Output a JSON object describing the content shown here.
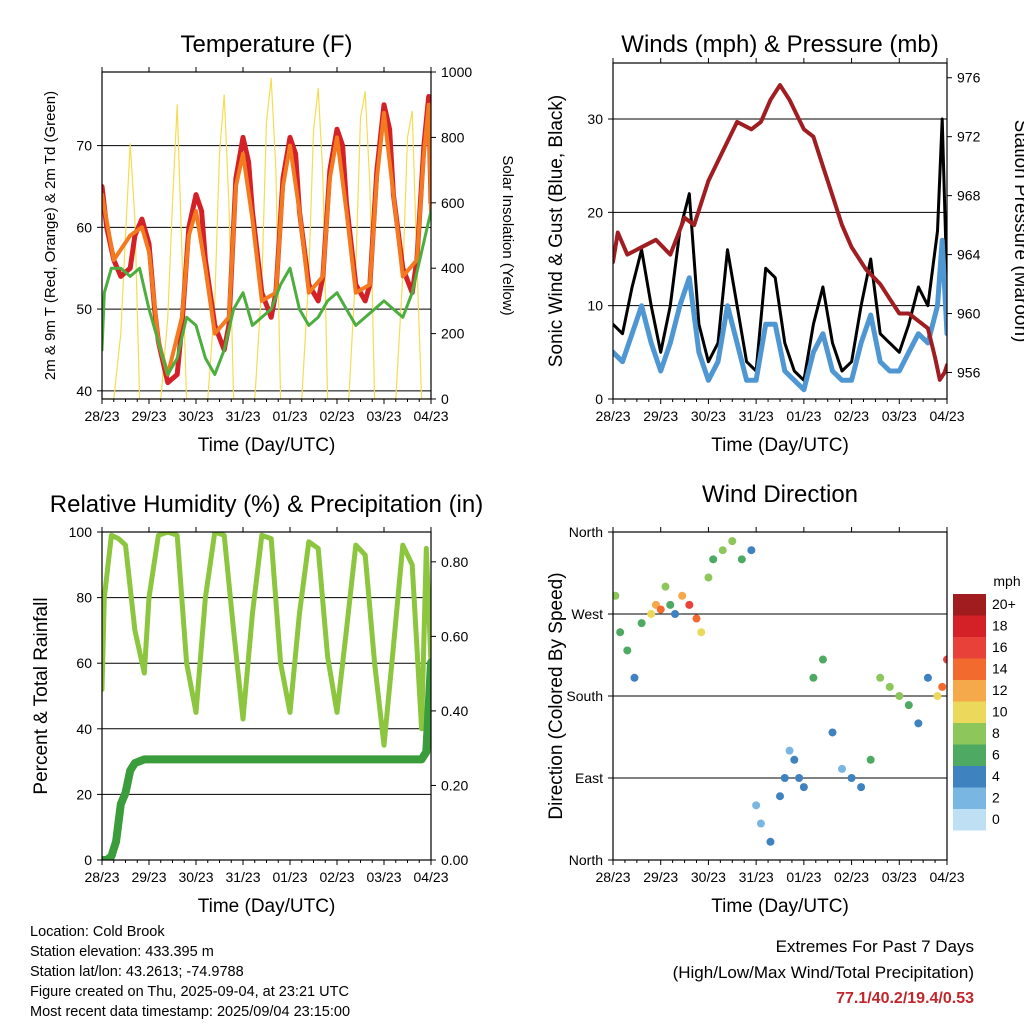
{
  "x_ticks": [
    "28/23",
    "29/23",
    "30/23",
    "31/23",
    "01/23",
    "02/23",
    "03/23",
    "04/23"
  ],
  "x_axis_label": "Time (Day/UTC)",
  "info": {
    "location": "Location: Cold Brook",
    "elevation": "Station elevation: 433.395 m",
    "latlon": "Station lat/lon: 43.2613; -74.9788",
    "created": "Figure created on Thu, 2025-09-04, at 23:21 UTC",
    "recent": "Most recent data timestamp: 2025/09/04 23:15:00"
  },
  "extremes": {
    "title": "Extremes For Past 7 Days",
    "subtitle": "(High/Low/Max Wind/Total Precipitation)",
    "values": "77.1/40.2/19.4/0.53"
  },
  "chart_data": [
    {
      "type": "line",
      "title": "Temperature (F)",
      "xlabel": "Time (Day/UTC)",
      "ylabel": "2m & 9m T (Red, Orange) & 2m Td (Green)",
      "y2label": "Solar Insolation (Yellow)",
      "ylim": [
        39,
        79
      ],
      "y_ticks": [
        40,
        50,
        60,
        70
      ],
      "y2lim": [
        0,
        1000
      ],
      "y2_ticks": [
        0,
        200,
        400,
        600,
        800,
        1000
      ],
      "grid": true,
      "series": [
        {
          "color": "#d42127",
          "x": [
            0,
            0.1,
            0.25,
            0.4,
            0.6,
            0.7,
            0.85,
            1.0,
            1.12,
            1.2,
            1.4,
            1.6,
            1.7,
            1.85,
            2.0,
            2.12,
            2.2,
            2.4,
            2.6,
            2.7,
            2.85,
            3.0,
            3.12,
            3.2,
            3.4,
            3.6,
            3.7,
            3.85,
            4.0,
            4.12,
            4.2,
            4.4,
            4.6,
            4.7,
            4.85,
            5.0,
            5.12,
            5.2,
            5.4,
            5.6,
            5.7,
            5.85,
            6.0,
            6.12,
            6.2,
            6.4,
            6.6,
            6.7,
            6.85,
            6.95,
            7.0
          ],
          "y": [
            65,
            60,
            56,
            54,
            55,
            59,
            61,
            58,
            50,
            46,
            41,
            42,
            48,
            60,
            64,
            62,
            56,
            48,
            45,
            48,
            66,
            71,
            68,
            62,
            52,
            49,
            52,
            66,
            71,
            69,
            62,
            53,
            51,
            54,
            67,
            72,
            70,
            63,
            53,
            51,
            53,
            67,
            75,
            72,
            64,
            55,
            52,
            56,
            70,
            76,
            63
          ]
        },
        {
          "color": "#f47a20",
          "x": [
            0,
            0.25,
            0.6,
            0.85,
            1.0,
            1.2,
            1.4,
            1.7,
            1.85,
            2.0,
            2.2,
            2.4,
            2.7,
            2.85,
            3.0,
            3.2,
            3.4,
            3.7,
            3.85,
            4.0,
            4.2,
            4.4,
            4.7,
            4.85,
            5.0,
            5.2,
            5.4,
            5.7,
            5.85,
            6.0,
            6.2,
            6.4,
            6.7,
            6.85,
            6.95,
            7.0
          ],
          "y": [
            64,
            56,
            59,
            60,
            57,
            46,
            42,
            49,
            59,
            62,
            55,
            47,
            49,
            65,
            69,
            61,
            51,
            52,
            65,
            70,
            62,
            52,
            54,
            66,
            71,
            62,
            52,
            53,
            66,
            74,
            64,
            54,
            56,
            69,
            75,
            62
          ]
        },
        {
          "color": "#4cae3e",
          "x": [
            0,
            0.05,
            0.2,
            0.4,
            0.6,
            0.8,
            1.0,
            1.2,
            1.4,
            1.6,
            1.8,
            2.0,
            2.2,
            2.4,
            2.6,
            2.8,
            3.0,
            3.2,
            3.4,
            3.6,
            3.8,
            4.0,
            4.2,
            4.4,
            4.6,
            4.8,
            5.0,
            5.2,
            5.4,
            5.6,
            5.8,
            6.0,
            6.2,
            6.4,
            6.6,
            6.8,
            7.0
          ],
          "y": [
            45,
            52,
            55,
            55,
            54,
            55,
            50,
            46,
            42,
            44,
            49,
            48,
            44,
            42,
            45,
            50,
            52,
            48,
            49,
            50,
            53,
            55,
            50,
            48,
            49,
            51,
            52,
            50,
            48,
            49,
            50,
            51,
            50,
            49,
            52,
            57,
            62
          ]
        },
        {
          "color": "#f5dc50",
          "axis": "y2",
          "x": [
            0,
            0.25,
            0.4,
            0.5,
            0.6,
            0.7,
            0.8,
            1.25,
            1.4,
            1.5,
            1.6,
            1.7,
            1.8,
            2.25,
            2.4,
            2.5,
            2.6,
            2.7,
            2.8,
            3.25,
            3.4,
            3.5,
            3.6,
            3.7,
            3.8,
            4.25,
            4.4,
            4.5,
            4.6,
            4.7,
            4.8,
            5.25,
            5.4,
            5.5,
            5.6,
            5.7,
            5.8,
            6.25,
            6.4,
            6.5,
            6.6,
            6.7,
            6.8,
            7.0
          ],
          "y": [
            0,
            0,
            200,
            500,
            780,
            550,
            0,
            0,
            250,
            600,
            900,
            450,
            0,
            0,
            300,
            750,
            930,
            600,
            0,
            0,
            350,
            850,
            980,
            700,
            0,
            0,
            380,
            820,
            950,
            680,
            0,
            0,
            400,
            860,
            940,
            650,
            0,
            0,
            380,
            800,
            880,
            420,
            0,
            0
          ]
        }
      ]
    },
    {
      "type": "line",
      "title": "Winds (mph) & Pressure (mb)",
      "xlabel": "Time (Day/UTC)",
      "ylabel": "Sonic Wind & Gust (Blue, Black)",
      "y2label": "Station Pressure (Maroon)",
      "ylim": [
        0,
        36
      ],
      "y_ticks": [
        0,
        10,
        20,
        30
      ],
      "y2lim": [
        954.2,
        977
      ],
      "y2_ticks": [
        956,
        960,
        964,
        968,
        972,
        976
      ],
      "grid": true,
      "series": [
        {
          "color": "#000000",
          "x": [
            0,
            0.2,
            0.4,
            0.6,
            0.8,
            1.0,
            1.2,
            1.4,
            1.6,
            1.8,
            2.0,
            2.2,
            2.4,
            2.6,
            2.8,
            3.0,
            3.2,
            3.4,
            3.6,
            3.8,
            4.0,
            4.2,
            4.4,
            4.6,
            4.8,
            5.0,
            5.2,
            5.4,
            5.6,
            5.8,
            6.0,
            6.2,
            6.4,
            6.6,
            6.8,
            6.9,
            7.0
          ],
          "y": [
            8,
            7,
            12,
            16,
            10,
            5,
            10,
            18,
            22,
            8,
            4,
            6,
            16,
            10,
            4,
            3,
            14,
            13,
            6,
            3,
            2,
            8,
            12,
            6,
            3,
            4,
            10,
            15,
            7,
            6,
            5,
            8,
            12,
            10,
            18,
            30,
            12
          ]
        },
        {
          "color": "#4f97d3",
          "x": [
            0,
            0.2,
            0.4,
            0.6,
            0.8,
            1.0,
            1.2,
            1.4,
            1.6,
            1.8,
            2.0,
            2.2,
            2.4,
            2.6,
            2.8,
            3.0,
            3.2,
            3.4,
            3.6,
            3.8,
            4.0,
            4.2,
            4.4,
            4.6,
            4.8,
            5.0,
            5.2,
            5.4,
            5.6,
            5.8,
            6.0,
            6.2,
            6.4,
            6.6,
            6.8,
            6.9,
            7.0
          ],
          "y": [
            5,
            4,
            7,
            10,
            6,
            3,
            6,
            10,
            13,
            5,
            2,
            4,
            10,
            6,
            2,
            2,
            8,
            8,
            3,
            2,
            1,
            5,
            7,
            3,
            2,
            2,
            6,
            9,
            4,
            3,
            3,
            5,
            7,
            6,
            10,
            17,
            7
          ]
        },
        {
          "color": "#a01e22",
          "axis": "y2",
          "x": [
            0,
            0.1,
            0.3,
            0.6,
            0.9,
            1.2,
            1.5,
            1.7,
            2.0,
            2.3,
            2.6,
            2.9,
            3.1,
            3.3,
            3.5,
            3.7,
            3.85,
            4.0,
            4.2,
            4.4,
            4.6,
            4.8,
            5.0,
            5.3,
            5.6,
            5.8,
            6.0,
            6.2,
            6.4,
            6.6,
            6.75,
            6.85,
            6.95,
            7.0
          ],
          "y": [
            963.5,
            965.5,
            964,
            964.5,
            965,
            964,
            966.5,
            966,
            969,
            971,
            973,
            972.5,
            973,
            974.5,
            975.5,
            974.5,
            973.5,
            972.5,
            972,
            970,
            968,
            966,
            964.5,
            963,
            962,
            961,
            960,
            960,
            959.5,
            959,
            957,
            955.5,
            956,
            956.5
          ]
        }
      ]
    },
    {
      "type": "line",
      "title": "Relative Humidity (%) & Precipitation (in)",
      "xlabel": "Time (Day/UTC)",
      "ylabel": "Percent & Total Rainfall",
      "ylim": [
        0,
        100
      ],
      "y_ticks": [
        0,
        20,
        40,
        60,
        80,
        100
      ],
      "y2lim": [
        0,
        0.88
      ],
      "y2_ticks": [
        "0.00",
        "0.20",
        "0.40",
        "0.60",
        "0.80"
      ],
      "grid": true,
      "series": [
        {
          "color": "#8cc63f",
          "x": [
            0,
            0.05,
            0.2,
            0.35,
            0.5,
            0.7,
            0.9,
            1.0,
            1.2,
            1.4,
            1.6,
            1.8,
            2.0,
            2.2,
            2.4,
            2.6,
            2.8,
            3.0,
            3.2,
            3.4,
            3.6,
            3.8,
            4.0,
            4.2,
            4.4,
            4.6,
            4.8,
            5.0,
            5.2,
            5.4,
            5.6,
            5.8,
            6.0,
            6.2,
            6.4,
            6.6,
            6.8,
            6.9,
            7.0
          ],
          "y": [
            52,
            80,
            99,
            98,
            96,
            70,
            57,
            80,
            99,
            100,
            99,
            60,
            45,
            80,
            100,
            99,
            70,
            43,
            75,
            99,
            98,
            60,
            45,
            75,
            97,
            95,
            62,
            45,
            70,
            96,
            93,
            60,
            35,
            65,
            96,
            90,
            40,
            95,
            60
          ]
        },
        {
          "color": "#3a9c3a",
          "axis": "y2",
          "x": [
            0,
            0.1,
            0.2,
            0.3,
            0.4,
            0.5,
            0.6,
            0.7,
            0.9,
            1.2,
            2.0,
            3.0,
            4.0,
            5.0,
            6.0,
            6.8,
            6.9,
            7.0
          ],
          "y": [
            0,
            0,
            0.01,
            0.05,
            0.15,
            0.18,
            0.24,
            0.26,
            0.27,
            0.27,
            0.27,
            0.27,
            0.27,
            0.27,
            0.27,
            0.27,
            0.29,
            0.53
          ]
        }
      ]
    },
    {
      "type": "scatter",
      "title": "Wind Direction",
      "xlabel": "Time (Day/UTC)",
      "ylabel": "Direction (Colored By Speed)",
      "y_ticks": [
        "North",
        "East",
        "South",
        "West",
        "North"
      ],
      "ylim": [
        0,
        360
      ],
      "legend": {
        "title": "mph",
        "placement": "right",
        "labels": [
          "20+",
          "18",
          "16",
          "14",
          "12",
          "10",
          "8",
          "6",
          "4",
          "2",
          "0"
        ],
        "colors": [
          "#a01c1f",
          "#d42127",
          "#e8413a",
          "#f26a2e",
          "#f5a94a",
          "#ead95a",
          "#8dc65a",
          "#4eaa63",
          "#3e82c0",
          "#7ab6e2",
          "#bfe0f4"
        ]
      },
      "series": [
        {
          "name": "direction",
          "x": [
            0.05,
            0.15,
            0.3,
            0.45,
            0.6,
            0.8,
            0.9,
            1.0,
            1.1,
            1.2,
            1.3,
            1.45,
            1.6,
            1.75,
            1.85,
            2.0,
            2.1,
            2.3,
            2.5,
            2.7,
            2.9,
            3.0,
            3.1,
            3.3,
            3.5,
            3.6,
            3.7,
            3.8,
            3.9,
            4.0,
            4.2,
            4.4,
            4.6,
            4.8,
            5.0,
            5.2,
            5.4,
            5.6,
            5.8,
            6.0,
            6.2,
            6.4,
            6.6,
            6.8,
            6.9,
            7.0
          ],
          "y": [
            290,
            250,
            230,
            200,
            260,
            270,
            280,
            275,
            300,
            280,
            270,
            290,
            280,
            265,
            250,
            310,
            330,
            340,
            350,
            330,
            340,
            60,
            40,
            20,
            70,
            90,
            120,
            110,
            90,
            80,
            200,
            220,
            140,
            100,
            90,
            80,
            110,
            200,
            190,
            180,
            170,
            150,
            200,
            180,
            190,
            220
          ],
          "speed": [
            8,
            6,
            5,
            4,
            6,
            10,
            12,
            14,
            8,
            6,
            3,
            12,
            16,
            14,
            10,
            8,
            6,
            8,
            8,
            6,
            4,
            2,
            2,
            3,
            3,
            3,
            2,
            4,
            4,
            3,
            6,
            5,
            4,
            2,
            3,
            3,
            5,
            7,
            8,
            8,
            6,
            4,
            3,
            10,
            14,
            16
          ]
        }
      ]
    }
  ]
}
